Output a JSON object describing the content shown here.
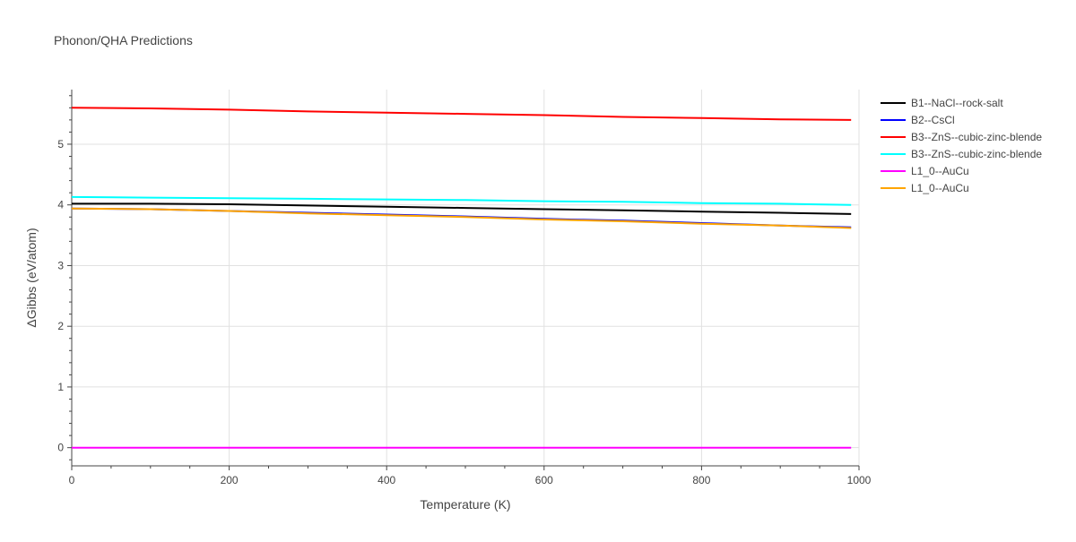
{
  "chart_data": {
    "type": "line",
    "title": "Phonon/QHA Predictions",
    "xlabel": "Temperature (K)",
    "ylabel": "ΔGibbs (eV/atom)",
    "xlim": [
      0,
      1000
    ],
    "ylim": [
      -0.3,
      5.9
    ],
    "xticks": [
      0,
      200,
      400,
      600,
      800,
      1000
    ],
    "yticks": [
      0,
      1,
      2,
      3,
      4,
      5
    ],
    "grid": true,
    "legend_position": "right",
    "series": [
      {
        "name": "B1--NaCl--rock-salt",
        "color": "#000000",
        "x": [
          0,
          100,
          200,
          300,
          400,
          500,
          600,
          700,
          800,
          900,
          990
        ],
        "y": [
          4.02,
          4.02,
          4.01,
          3.99,
          3.97,
          3.95,
          3.93,
          3.91,
          3.89,
          3.87,
          3.85
        ]
      },
      {
        "name": "B2--CsCl",
        "color": "#0000ff",
        "x": [
          0,
          100,
          200,
          300,
          400,
          500,
          600,
          700,
          800,
          900,
          990
        ],
        "y": [
          3.94,
          3.93,
          3.9,
          3.87,
          3.84,
          3.81,
          3.77,
          3.74,
          3.7,
          3.66,
          3.63
        ]
      },
      {
        "name": "B3--ZnS--cubic-zinc-blende",
        "color": "#ff0000",
        "x": [
          0,
          100,
          200,
          300,
          400,
          500,
          600,
          700,
          800,
          900,
          990
        ],
        "y": [
          5.6,
          5.59,
          5.57,
          5.54,
          5.52,
          5.5,
          5.48,
          5.45,
          5.43,
          5.41,
          5.4
        ]
      },
      {
        "name": "B3--ZnS--cubic-zinc-blende",
        "color": "#00ffff",
        "x": [
          0,
          100,
          200,
          300,
          400,
          500,
          600,
          700,
          800,
          900,
          990
        ],
        "y": [
          4.13,
          4.12,
          4.11,
          4.1,
          4.09,
          4.08,
          4.06,
          4.05,
          4.03,
          4.02,
          4.0
        ]
      },
      {
        "name": "L1_0--AuCu",
        "color": "#ff00ff",
        "x": [
          0,
          100,
          200,
          300,
          400,
          500,
          600,
          700,
          800,
          900,
          990
        ],
        "y": [
          0,
          0,
          0,
          0,
          0,
          0,
          0,
          0,
          0,
          0,
          0
        ]
      },
      {
        "name": "L1_0--AuCu",
        "color": "#ffa500",
        "x": [
          0,
          100,
          200,
          300,
          400,
          500,
          600,
          700,
          800,
          900,
          990
        ],
        "y": [
          3.94,
          3.93,
          3.9,
          3.86,
          3.83,
          3.8,
          3.76,
          3.73,
          3.69,
          3.66,
          3.62
        ]
      }
    ]
  }
}
